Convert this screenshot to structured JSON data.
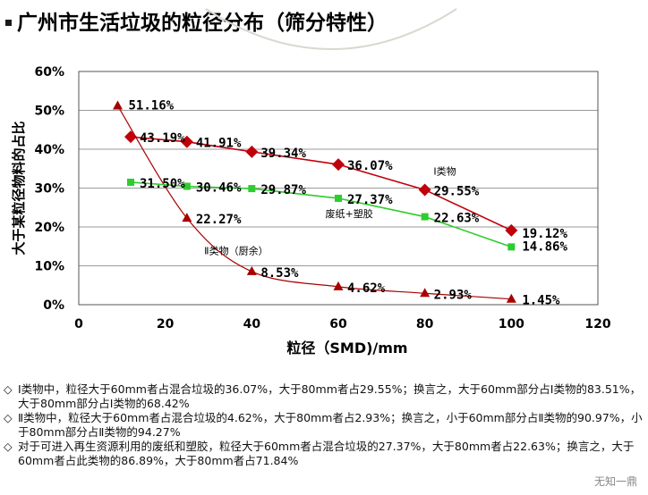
{
  "title": "广州市生活垃圾的粒径分布（筛分特性）",
  "chart_data": {
    "type": "line",
    "xlabel": "粒径（SMD)/mm",
    "ylabel": "大于某粒径物料的占比",
    "xlim": [
      0,
      120
    ],
    "ylim": [
      0,
      60
    ],
    "x_ticks": [
      "0",
      "20",
      "40",
      "60",
      "80",
      "100",
      "120"
    ],
    "y_ticks": [
      "0%",
      "10%",
      "20%",
      "30%",
      "40%",
      "50%",
      "60%"
    ],
    "grid": "horizontal",
    "series": [
      {
        "id": "type1",
        "color": "#c0000a",
        "marker": "diamond",
        "x": [
          12,
          25,
          40,
          60,
          80,
          100
        ],
        "y": [
          43.19,
          41.91,
          39.34,
          36.07,
          29.55,
          19.12
        ],
        "labels": [
          "43.19%",
          "41.91%",
          "39.34%",
          "36.07%",
          "29.55%",
          "19.12%"
        ]
      },
      {
        "id": "type2",
        "color": "#a80000",
        "marker": "triangle",
        "x": [
          9,
          25,
          40,
          60,
          80,
          100
        ],
        "y": [
          51.16,
          22.27,
          8.53,
          4.62,
          2.93,
          1.45
        ],
        "labels": [
          "51.16%",
          "22.27%",
          "8.53%",
          "4.62%",
          "2.93%",
          "1.45%"
        ]
      },
      {
        "id": "paper",
        "color": "#2ecc2e",
        "marker": "square",
        "x": [
          12,
          25,
          40,
          60,
          80,
          100
        ],
        "y": [
          31.5,
          30.46,
          29.87,
          27.37,
          22.63,
          14.86
        ],
        "labels": [
          "31.50%",
          "30.46%",
          "29.87%",
          "27.37%",
          "22.63%",
          "14.86%"
        ]
      }
    ],
    "annotations": [
      {
        "text": "Ⅰ类物",
        "x": 82,
        "y": 33.5
      },
      {
        "text": "废纸+塑胶",
        "x": 57,
        "y": 22.5
      },
      {
        "text": "Ⅱ类物（厨余）",
        "x": 29,
        "y": 13
      }
    ]
  },
  "notes": [
    {
      "mark": "◇",
      "text": "Ⅰ类物中，粒径大于60mm者占混合垃圾的36.07%，大于80mm者占29.55%；换言之，大于60mm部分占Ⅰ类物的83.51%，大于80mm部分占Ⅰ类物的68.42%"
    },
    {
      "mark": "◇",
      "text": "Ⅱ类物中，粒径大于60mm者占混合垃圾的4.62%，大于80mm者占2.93%；换言之，小于60mm部分占Ⅱ类物的90.97%，小于80mm部分占Ⅱ类物的94.27%"
    },
    {
      "mark": "◇",
      "text": "对于可进入再生资源利用的废纸和塑胶，粒径大于60mm者占混合垃圾的27.37%，大于80mm者占22.63%；换言之，大于60mm者占此类物的86.89%，大于80mm者占71.84%"
    }
  ],
  "watermark": "无知一鼎"
}
